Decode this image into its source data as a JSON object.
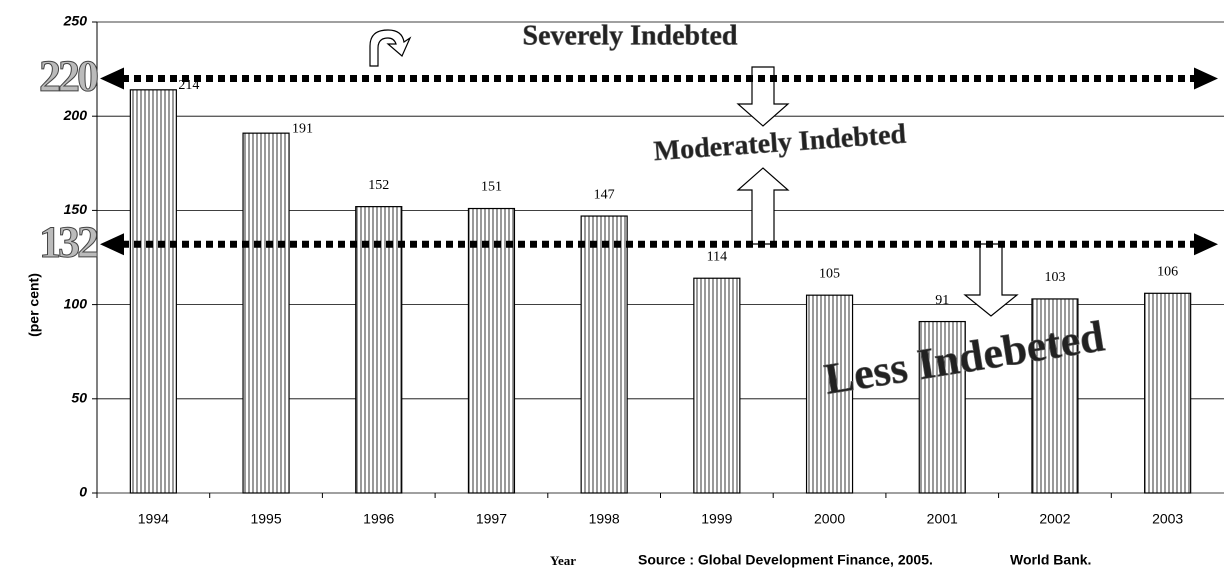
{
  "chart_data": {
    "type": "bar",
    "categories": [
      "1994",
      "1995",
      "1996",
      "1997",
      "1998",
      "1999",
      "2000",
      "2001",
      "2002",
      "2003"
    ],
    "values": [
      214,
      191,
      152,
      151,
      147,
      114,
      105,
      91,
      103,
      106
    ],
    "ylim": [
      0,
      250
    ],
    "yticks": [
      0,
      50,
      100,
      150,
      200,
      250
    ],
    "grid": true,
    "y_label": "(per cent)",
    "x_label": "Year",
    "reference_lines": [
      220,
      132
    ],
    "annotations": [
      "Severely Indebted",
      "Moderately Indebted",
      "Less Indebeted"
    ],
    "source": "Source : Global Development Finance, 2005.",
    "source_org": "World Bank.",
    "color": "#000000"
  }
}
